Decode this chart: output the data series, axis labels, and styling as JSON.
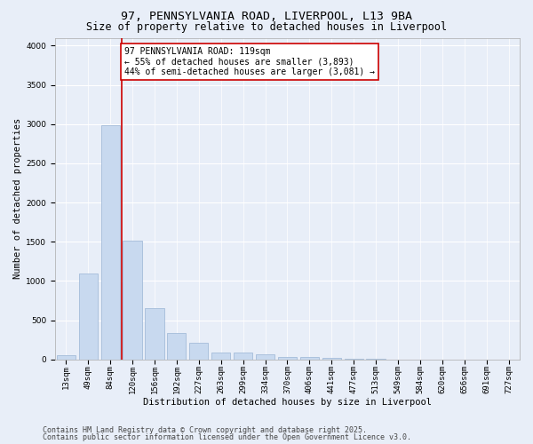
{
  "title_line1": "97, PENNSYLVANIA ROAD, LIVERPOOL, L13 9BA",
  "title_line2": "Size of property relative to detached houses in Liverpool",
  "xlabel": "Distribution of detached houses by size in Liverpool",
  "ylabel": "Number of detached properties",
  "categories": [
    "13sqm",
    "49sqm",
    "84sqm",
    "120sqm",
    "156sqm",
    "192sqm",
    "227sqm",
    "263sqm",
    "299sqm",
    "334sqm",
    "370sqm",
    "406sqm",
    "441sqm",
    "477sqm",
    "513sqm",
    "549sqm",
    "584sqm",
    "620sqm",
    "656sqm",
    "691sqm",
    "727sqm"
  ],
  "values": [
    50,
    1100,
    2980,
    1520,
    650,
    340,
    215,
    90,
    90,
    65,
    35,
    30,
    20,
    10,
    5,
    2,
    1,
    0,
    0,
    0,
    0
  ],
  "bar_color": "#c8d9ef",
  "bar_edge_color": "#9ab4d4",
  "vline_x": 2.5,
  "vline_color": "#cc0000",
  "annotation_text": "97 PENNSYLVANIA ROAD: 119sqm\n← 55% of detached houses are smaller (3,893)\n44% of semi-detached houses are larger (3,081) →",
  "annotation_box_color": "#ffffff",
  "annotation_box_edge": "#cc0000",
  "ylim": [
    0,
    4100
  ],
  "yticks": [
    0,
    500,
    1000,
    1500,
    2000,
    2500,
    3000,
    3500,
    4000
  ],
  "bg_color": "#e8eef8",
  "plot_bg": "#e8eef8",
  "grid_color": "#ffffff",
  "footer_line1": "Contains HM Land Registry data © Crown copyright and database right 2025.",
  "footer_line2": "Contains public sector information licensed under the Open Government Licence v3.0.",
  "title_fontsize": 9.5,
  "subtitle_fontsize": 8.5,
  "axis_label_fontsize": 7.5,
  "tick_fontsize": 6.5,
  "annotation_fontsize": 7,
  "footer_fontsize": 6
}
